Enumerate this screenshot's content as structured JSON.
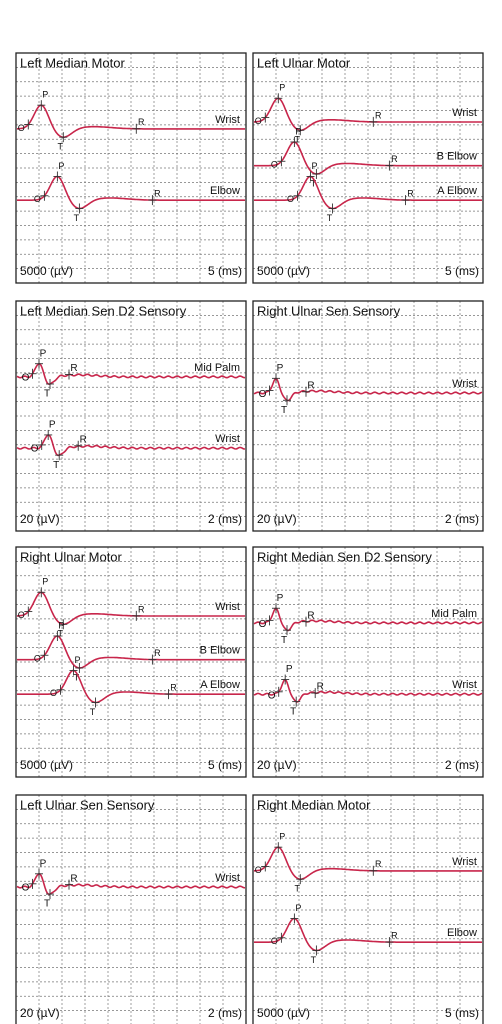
{
  "panels": [
    {
      "title": "Left Median Motor",
      "amplitude_scale": "5000 (µV)",
      "time_scale": "5 (ms)",
      "traces": [
        {
          "label": "Wrist",
          "markers": [
            "O",
            "P",
            "T",
            "R"
          ]
        },
        {
          "label": "Elbow",
          "markers": [
            "O",
            "P",
            "T",
            "R"
          ]
        }
      ]
    },
    {
      "title": "Left Ulnar Motor",
      "amplitude_scale": "5000 (µV)",
      "time_scale": "5 (ms)",
      "traces": [
        {
          "label": "Wrist",
          "markers": [
            "O",
            "P",
            "T",
            "R"
          ]
        },
        {
          "label": "B Elbow",
          "markers": [
            "O",
            "P",
            "T",
            "R"
          ]
        },
        {
          "label": "A Elbow",
          "markers": [
            "O",
            "P",
            "T",
            "R"
          ]
        }
      ]
    },
    {
      "title": "Left Median Sen D2 Sensory",
      "amplitude_scale": "20 (µV)",
      "time_scale": "2 (ms)",
      "traces": [
        {
          "label": "Mid Palm",
          "markers": [
            "O",
            "P",
            "T",
            "R"
          ]
        },
        {
          "label": "Wrist",
          "markers": [
            "O",
            "P",
            "T",
            "R"
          ]
        }
      ]
    },
    {
      "title": "Right Ulnar Sen Sensory",
      "amplitude_scale": "20 (µV)",
      "time_scale": "2 (ms)",
      "traces": [
        {
          "label": "Wrist",
          "markers": [
            "O",
            "P",
            "T",
            "R"
          ]
        }
      ]
    },
    {
      "title": "Right Ulnar Motor",
      "amplitude_scale": "5000 (µV)",
      "time_scale": "5 (ms)",
      "traces": [
        {
          "label": "Wrist",
          "markers": [
            "O",
            "P",
            "T",
            "R"
          ]
        },
        {
          "label": "B Elbow",
          "markers": [
            "O",
            "P",
            "T",
            "R"
          ]
        },
        {
          "label": "A Elbow",
          "markers": [
            "O",
            "P",
            "T",
            "R"
          ]
        }
      ]
    },
    {
      "title": "Right Median Sen D2 Sensory",
      "amplitude_scale": "20 (µV)",
      "time_scale": "2 (ms)",
      "traces": [
        {
          "label": "Mid Palm",
          "markers": [
            "O",
            "P",
            "T",
            "R"
          ]
        },
        {
          "label": "Wrist",
          "markers": [
            "O",
            "P",
            "T",
            "R"
          ]
        }
      ]
    },
    {
      "title": "Left Ulnar Sen Sensory",
      "amplitude_scale": "20 (µV)",
      "time_scale": "2 (ms)",
      "traces": [
        {
          "label": "Wrist",
          "markers": [
            "O",
            "P",
            "T",
            "R"
          ]
        }
      ]
    },
    {
      "title": "Right Median Motor",
      "amplitude_scale": "5000 (µV)",
      "time_scale": "5 (ms)",
      "traces": [
        {
          "label": "Wrist",
          "markers": [
            "O",
            "P",
            "T",
            "R"
          ]
        },
        {
          "label": "Elbow",
          "markers": [
            "O",
            "P",
            "T",
            "R"
          ]
        }
      ]
    }
  ]
}
